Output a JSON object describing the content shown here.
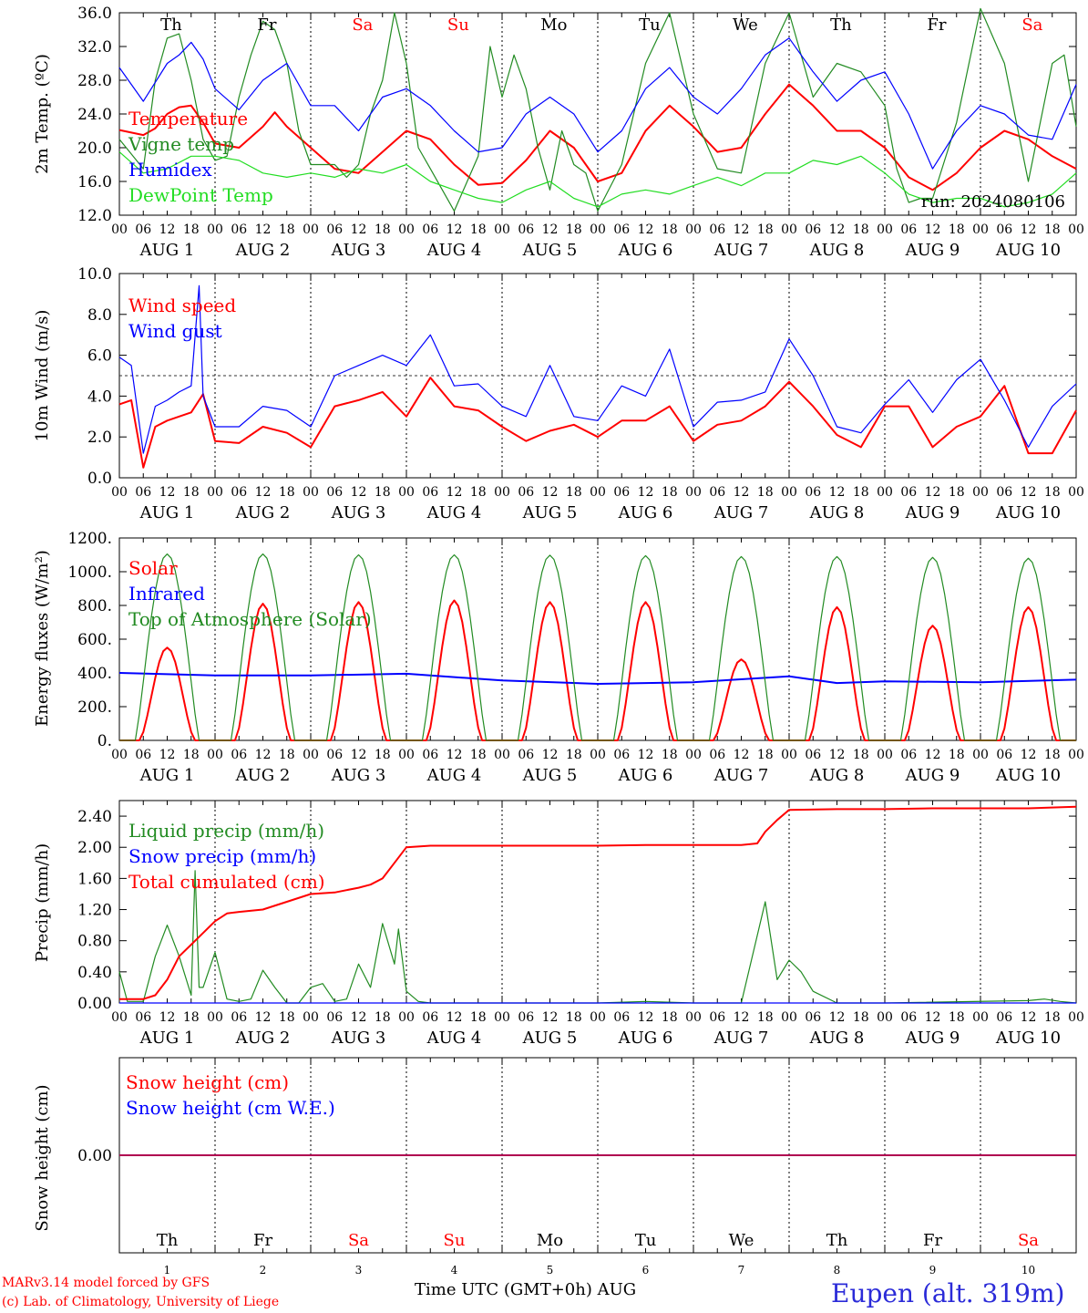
{
  "footer": {
    "model": "MARv3.14 model forced by GFS",
    "credit": "(c) Lab. of Climatology, University of Liege",
    "time_axis": "Time UTC (GMT+0h) AUG",
    "station": "Eupen (alt. 319m)"
  },
  "run_label": "run: 2024080106",
  "day_names": [
    "Th",
    "Fr",
    "Sa",
    "Su",
    "Mo",
    "Tu",
    "We",
    "Th",
    "Fr",
    "Sa"
  ],
  "weekend_flags": [
    false,
    false,
    true,
    true,
    false,
    false,
    false,
    false,
    false,
    true
  ],
  "day_numbers": [
    "1",
    "2",
    "3",
    "4",
    "5",
    "6",
    "7",
    "8",
    "9",
    "10"
  ],
  "date_labels": [
    "AUG  1",
    "AUG  2",
    "AUG  3",
    "AUG  4",
    "AUG  5",
    "AUG  6",
    "AUG  7",
    "AUG  8",
    "AUG  9",
    "AUG 10"
  ],
  "hour_ticks": [
    "00",
    "06",
    "12",
    "18"
  ],
  "colors": {
    "red": "#ff0000",
    "green": "#228b22",
    "blue": "#0000ff",
    "lightgreen": "#22dd22",
    "purple": "#800080"
  },
  "chart_data": [
    {
      "type": "line",
      "ylabel": "2m Temp. (ºC)",
      "ylim": [
        12,
        36
      ],
      "yticks": [
        "12.0",
        "16.0",
        "20.0",
        "24.0",
        "28.0",
        "32.0",
        "36.0"
      ],
      "x_unit": "hours since AUG 1 00 UTC",
      "legend": "top-left",
      "series": [
        {
          "name": "Temperature",
          "color": "red",
          "x": [
            0,
            6,
            9,
            12,
            15,
            18,
            21,
            24,
            30,
            36,
            39,
            42,
            48,
            54,
            60,
            66,
            72,
            78,
            84,
            90,
            96,
            102,
            108,
            114,
            120,
            126,
            132,
            138,
            144,
            150,
            156,
            162,
            168,
            174,
            180,
            186,
            192,
            198,
            204,
            210,
            216,
            222,
            228,
            234,
            240
          ],
          "y": [
            22.1,
            21.5,
            22.3,
            24,
            24.8,
            25,
            23,
            20.5,
            20,
            22.5,
            24.2,
            22.5,
            20,
            17.5,
            17,
            19.5,
            22,
            21,
            18,
            15.6,
            15.8,
            18.5,
            22,
            20,
            16,
            17,
            22,
            25,
            22.5,
            19.5,
            20,
            24,
            27.5,
            25,
            22,
            22,
            20,
            16.5,
            15,
            17,
            20,
            22,
            21,
            19,
            17.5
          ]
        },
        {
          "name": "Vigne temp",
          "color": "green",
          "x": [
            0,
            6,
            9,
            12,
            15,
            18,
            21,
            24,
            27,
            30,
            33,
            36,
            39,
            42,
            45,
            48,
            54,
            57,
            60,
            63,
            66,
            69,
            72,
            75,
            78,
            84,
            90,
            93,
            96,
            99,
            102,
            105,
            108,
            111,
            114,
            117,
            120,
            126,
            132,
            138,
            144,
            150,
            156,
            162,
            168,
            174,
            180,
            186,
            192,
            195,
            198,
            201,
            204,
            210,
            216,
            222,
            228,
            234,
            237,
            240
          ],
          "y": [
            21,
            17.5,
            28,
            33,
            33.5,
            28,
            21,
            18.5,
            19,
            26,
            31,
            35,
            34,
            30,
            22,
            18,
            18,
            16.5,
            18,
            24,
            28,
            36,
            30,
            20,
            17.5,
            12.5,
            19,
            32,
            26,
            31,
            27,
            20,
            15,
            22,
            18,
            17,
            12.5,
            18,
            30,
            36,
            24,
            17.5,
            17,
            30,
            36,
            26,
            30,
            29,
            25,
            17.5,
            13.5,
            14,
            14,
            23,
            36.5,
            30,
            16,
            30,
            31,
            22.5
          ]
        },
        {
          "name": "Humidex",
          "color": "blue",
          "x": [
            0,
            6,
            12,
            15,
            18,
            21,
            24,
            30,
            36,
            42,
            48,
            54,
            60,
            66,
            72,
            78,
            84,
            90,
            96,
            102,
            108,
            114,
            120,
            126,
            132,
            138,
            144,
            150,
            156,
            162,
            168,
            174,
            180,
            186,
            192,
            198,
            204,
            210,
            216,
            222,
            228,
            234,
            240
          ],
          "y": [
            29.5,
            25.5,
            30,
            31,
            32.5,
            30.5,
            27,
            24.5,
            28,
            30,
            25,
            25,
            22,
            26,
            27,
            25,
            22,
            19.5,
            20,
            24,
            26,
            24,
            19.5,
            22,
            27,
            29.5,
            26,
            24,
            27,
            31,
            33,
            29,
            25.5,
            28,
            29,
            24,
            17.5,
            22,
            25,
            24,
            21.5,
            21,
            27.5
          ]
        },
        {
          "name": "DewPoint Temp",
          "color": "lightgreen",
          "x": [
            0,
            6,
            12,
            18,
            24,
            30,
            36,
            42,
            48,
            54,
            60,
            66,
            72,
            78,
            84,
            90,
            96,
            102,
            108,
            114,
            120,
            126,
            132,
            138,
            144,
            150,
            156,
            162,
            168,
            174,
            180,
            186,
            192,
            198,
            204,
            210,
            216,
            222,
            228,
            234,
            240
          ],
          "y": [
            19.5,
            17,
            17.5,
            19,
            19,
            18.5,
            17,
            16.5,
            17,
            16.5,
            17.5,
            17,
            18,
            16,
            15,
            14,
            13.5,
            15,
            16,
            14,
            13,
            14.5,
            15,
            14.5,
            15.5,
            16.5,
            15.5,
            17,
            17,
            18.5,
            18,
            19,
            17,
            14.5,
            13.5,
            14,
            14,
            13,
            13.5,
            14.5,
            17
          ]
        }
      ]
    },
    {
      "type": "line",
      "ylabel": "10m Wind (m/s)",
      "ylim": [
        0,
        10
      ],
      "yticks": [
        "0.0",
        "2.0",
        "4.0",
        "6.0",
        "8.0",
        "10.0"
      ],
      "reference_line": 5,
      "legend": "top-left",
      "series": [
        {
          "name": "Wind speed",
          "color": "red",
          "x": [
            0,
            3,
            6,
            9,
            12,
            15,
            18,
            21,
            24,
            30,
            36,
            42,
            48,
            54,
            60,
            66,
            72,
            78,
            84,
            90,
            96,
            102,
            108,
            114,
            120,
            126,
            132,
            138,
            144,
            150,
            156,
            162,
            168,
            174,
            180,
            186,
            192,
            198,
            204,
            210,
            216,
            222,
            228,
            234,
            240
          ],
          "y": [
            3.6,
            3.8,
            0.5,
            2.5,
            2.8,
            3,
            3.2,
            4.1,
            1.8,
            1.7,
            2.5,
            2.2,
            1.5,
            3.5,
            3.8,
            4.2,
            3,
            4.9,
            3.5,
            3.3,
            2.5,
            1.8,
            2.3,
            2.6,
            2,
            2.8,
            2.8,
            3.5,
            1.8,
            2.6,
            2.8,
            3.5,
            4.7,
            3.5,
            2.1,
            1.5,
            3.5,
            3.5,
            1.5,
            2.5,
            3,
            4.5,
            1.2,
            1.2,
            3.3
          ]
        },
        {
          "name": "Wind gust",
          "color": "blue",
          "x": [
            0,
            3,
            6,
            9,
            12,
            15,
            18,
            20,
            21,
            24,
            30,
            36,
            42,
            48,
            54,
            60,
            66,
            72,
            78,
            84,
            90,
            96,
            102,
            108,
            114,
            120,
            126,
            132,
            138,
            144,
            150,
            156,
            162,
            168,
            174,
            180,
            186,
            192,
            198,
            204,
            210,
            216,
            222,
            228,
            234,
            240
          ],
          "y": [
            5.9,
            5.5,
            1.2,
            3.5,
            3.8,
            4.2,
            4.5,
            9.4,
            4,
            2.5,
            2.5,
            3.5,
            3.3,
            2.5,
            5,
            5.5,
            6,
            5.5,
            7,
            4.5,
            4.6,
            3.5,
            3,
            5.5,
            3,
            2.8,
            4.5,
            4,
            6.3,
            2.5,
            3.7,
            3.8,
            4.2,
            6.8,
            5,
            2.5,
            2.2,
            3.6,
            4.8,
            3.2,
            4.8,
            5.8,
            3.8,
            1.5,
            3.5,
            4.6
          ]
        }
      ]
    },
    {
      "type": "line",
      "ylabel": "Energy fluxes (W/m²)",
      "ylim": [
        0,
        1200
      ],
      "yticks": [
        "0.",
        "200.",
        "400.",
        "600.",
        "800.",
        "1000.",
        "1200."
      ],
      "legend": "top-left",
      "series": [
        {
          "name": "Solar",
          "color": "red",
          "daily_peak": [
            550,
            810,
            820,
            830,
            820,
            820,
            480,
            790,
            680,
            790
          ]
        },
        {
          "name": "Infrared",
          "color": "blue",
          "x": [
            0,
            24,
            48,
            72,
            96,
            120,
            144,
            168,
            180,
            192,
            216,
            240
          ],
          "y": [
            400,
            385,
            385,
            395,
            355,
            335,
            345,
            380,
            340,
            350,
            345,
            360
          ]
        },
        {
          "name": "Top of Atmosphere (Solar)",
          "color": "green",
          "daily_peak": [
            1105,
            1105,
            1100,
            1100,
            1098,
            1095,
            1090,
            1090,
            1085,
            1080
          ]
        }
      ]
    },
    {
      "type": "line",
      "ylabel": "Precip (mm/h)",
      "ylim": [
        0,
        2.6
      ],
      "yticks": [
        "0.00",
        "0.40",
        "0.80",
        "1.20",
        "1.60",
        "2.00",
        "2.40"
      ],
      "legend": "top-left",
      "series": [
        {
          "name": "Liquid precip (mm/h)",
          "color": "green",
          "x": [
            0,
            2,
            6,
            9,
            12,
            15,
            18,
            19,
            20,
            21,
            24,
            27,
            30,
            33,
            36,
            39,
            42,
            45,
            48,
            51,
            54,
            57,
            60,
            63,
            66,
            69,
            70,
            72,
            75,
            78,
            84,
            90,
            96,
            102,
            108,
            120,
            132,
            144,
            150,
            156,
            162,
            165,
            168,
            171,
            174,
            180,
            192,
            228,
            232,
            236,
            240
          ],
          "y": [
            0.4,
            0.02,
            0.02,
            0.6,
            1,
            0.6,
            0.1,
            1.7,
            0.2,
            0.2,
            0.65,
            0.05,
            0.02,
            0.05,
            0.42,
            0.2,
            0,
            0,
            0.2,
            0.25,
            0.02,
            0.05,
            0.5,
            0.2,
            1.02,
            0.5,
            0.95,
            0.15,
            0.02,
            0,
            0,
            0,
            0,
            0,
            0,
            0,
            0.02,
            0,
            0,
            0,
            1.3,
            0.3,
            0.55,
            0.4,
            0.15,
            0,
            0,
            0.03,
            0.05,
            0.02,
            0
          ]
        },
        {
          "name": "Snow precip (mm/h)",
          "color": "blue",
          "x": [
            0,
            240
          ],
          "y": [
            0,
            0
          ]
        },
        {
          "name": "Total cumulated (cm)",
          "color": "red",
          "x": [
            0,
            6,
            9,
            12,
            15,
            18,
            21,
            24,
            27,
            30,
            36,
            42,
            48,
            54,
            60,
            63,
            66,
            69,
            72,
            78,
            84,
            96,
            108,
            120,
            132,
            144,
            150,
            156,
            160,
            162,
            165,
            168,
            180,
            192,
            204,
            216,
            228,
            240
          ],
          "y": [
            0.05,
            0.05,
            0.1,
            0.3,
            0.6,
            0.75,
            0.9,
            1.05,
            1.15,
            1.17,
            1.2,
            1.3,
            1.4,
            1.42,
            1.48,
            1.52,
            1.6,
            1.8,
            2.0,
            2.02,
            2.02,
            2.02,
            2.02,
            2.02,
            2.03,
            2.03,
            2.03,
            2.03,
            2.05,
            2.2,
            2.35,
            2.48,
            2.49,
            2.49,
            2.5,
            2.5,
            2.5,
            2.52
          ]
        }
      ]
    },
    {
      "type": "line",
      "ylabel": "Snow height (cm)",
      "yticks": [
        "0.00"
      ],
      "legend": "top-left",
      "series": [
        {
          "name": "Snow height (cm)",
          "color": "red",
          "x": [
            0,
            240
          ],
          "y": [
            0,
            0
          ]
        },
        {
          "name": "Snow height (cm W.E.)",
          "color": "blue",
          "x": [
            0,
            240
          ],
          "y": [
            0,
            0
          ]
        }
      ]
    }
  ]
}
